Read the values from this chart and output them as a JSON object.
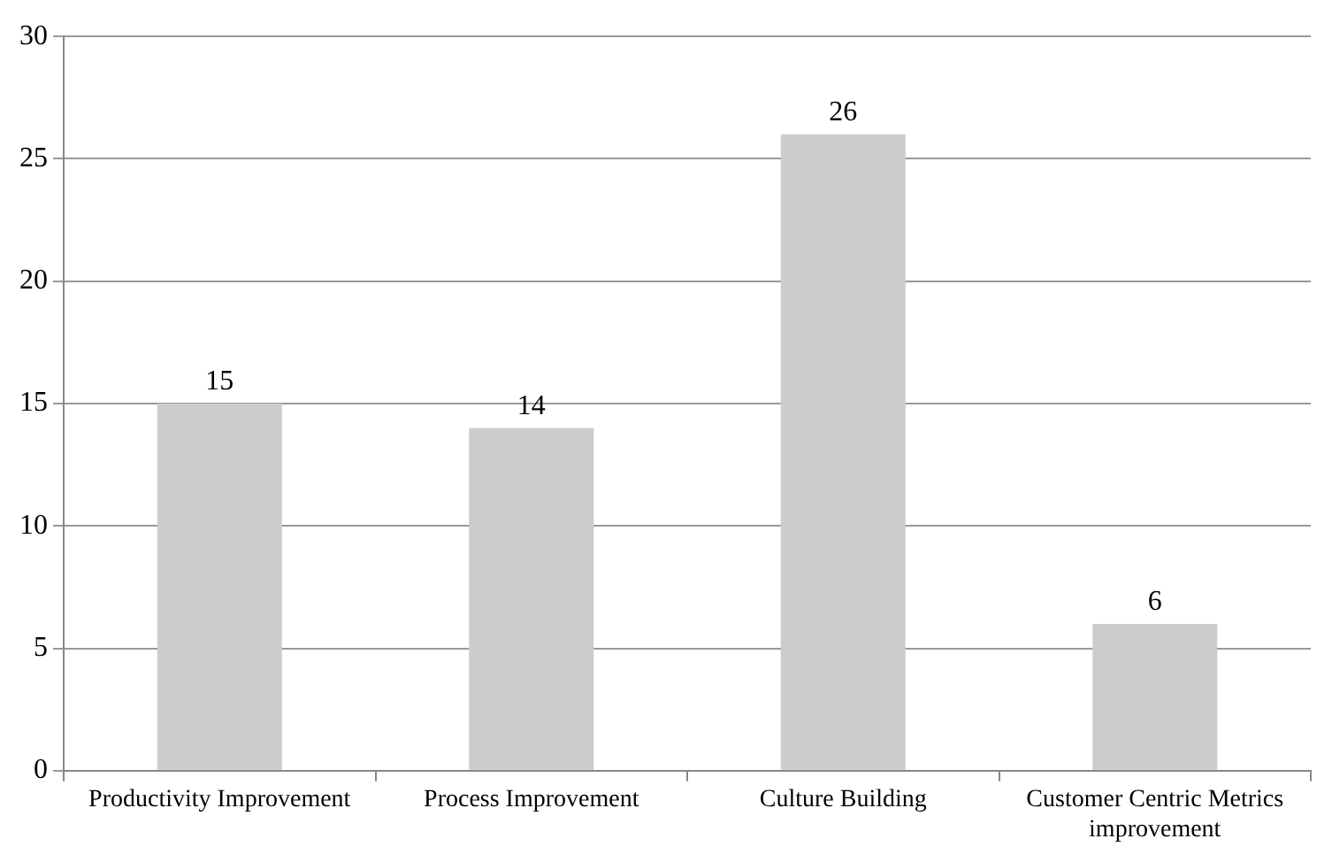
{
  "chart_data": {
    "type": "bar",
    "categories": [
      "Productivity Improvement",
      "Process Improvement",
      "Culture Building",
      "Customer Centric Metrics improvement"
    ],
    "values": [
      15,
      14,
      26,
      6
    ],
    "color": "#cccccc",
    "ylim": [
      0,
      30
    ],
    "yticks": [
      0,
      5,
      10,
      15,
      20,
      25,
      30
    ],
    "grid": "y",
    "data_labels": true,
    "legend": false
  }
}
